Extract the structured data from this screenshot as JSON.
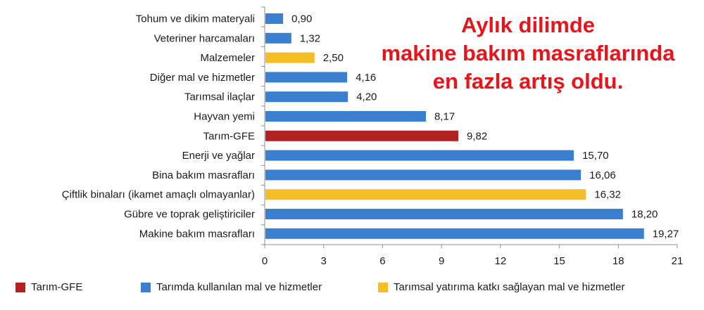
{
  "headline": {
    "line1": "Aylık dilimde",
    "line2": "makine bakım masraflarında",
    "line3": "en fazla artış oldu."
  },
  "colors": {
    "tarim_gfe": "#b22222",
    "kullanilan": "#3a7fd0",
    "yatirima": "#f5be25",
    "axis": "#8c8c8c",
    "headline": "#e8141b"
  },
  "legend": [
    {
      "label": "Tarım-GFE",
      "color": "#b22222"
    },
    {
      "label": "Tarımda kullanılan mal ve hizmetler",
      "color": "#3a7fd0"
    },
    {
      "label": "Tarımsal yatırıma katkı sağlayan mal ve hizmetler",
      "color": "#f5be25"
    }
  ],
  "chart_data": {
    "type": "bar",
    "orientation": "horizontal",
    "categories": [
      "Tohum ve dikim materyali",
      "Veteriner harcamaları",
      "Malzemeler",
      "Diğer mal ve hizmetler",
      "Tarımsal ilaçlar",
      "Hayvan yemi",
      "Tarım-GFE",
      "Enerji ve yağlar",
      "Bina bakım masrafları",
      "Çiftlik binaları (ikamet amaçlı olmayanlar)",
      "Gübre ve toprak geliştiriciler",
      "Makine bakım masrafları"
    ],
    "values": [
      0.9,
      1.32,
      2.5,
      4.16,
      4.2,
      8.17,
      9.82,
      15.7,
      16.06,
      16.32,
      18.2,
      19.27
    ],
    "value_labels": [
      "0,90",
      "1,32",
      "2,50",
      "4,16",
      "4,20",
      "8,17",
      "9,82",
      "15,70",
      "16,06",
      "16,32",
      "18,20",
      "19,27"
    ],
    "groups": [
      "kullanilan",
      "kullanilan",
      "yatirima",
      "kullanilan",
      "kullanilan",
      "kullanilan",
      "tarim_gfe",
      "kullanilan",
      "kullanilan",
      "yatirima",
      "kullanilan",
      "kullanilan"
    ],
    "xlim": [
      0,
      21
    ],
    "xticks": [
      0,
      3,
      6,
      9,
      12,
      15,
      18,
      21
    ],
    "xlabel": "",
    "ylabel": "",
    "grid": false,
    "legend_position": "bottom"
  }
}
